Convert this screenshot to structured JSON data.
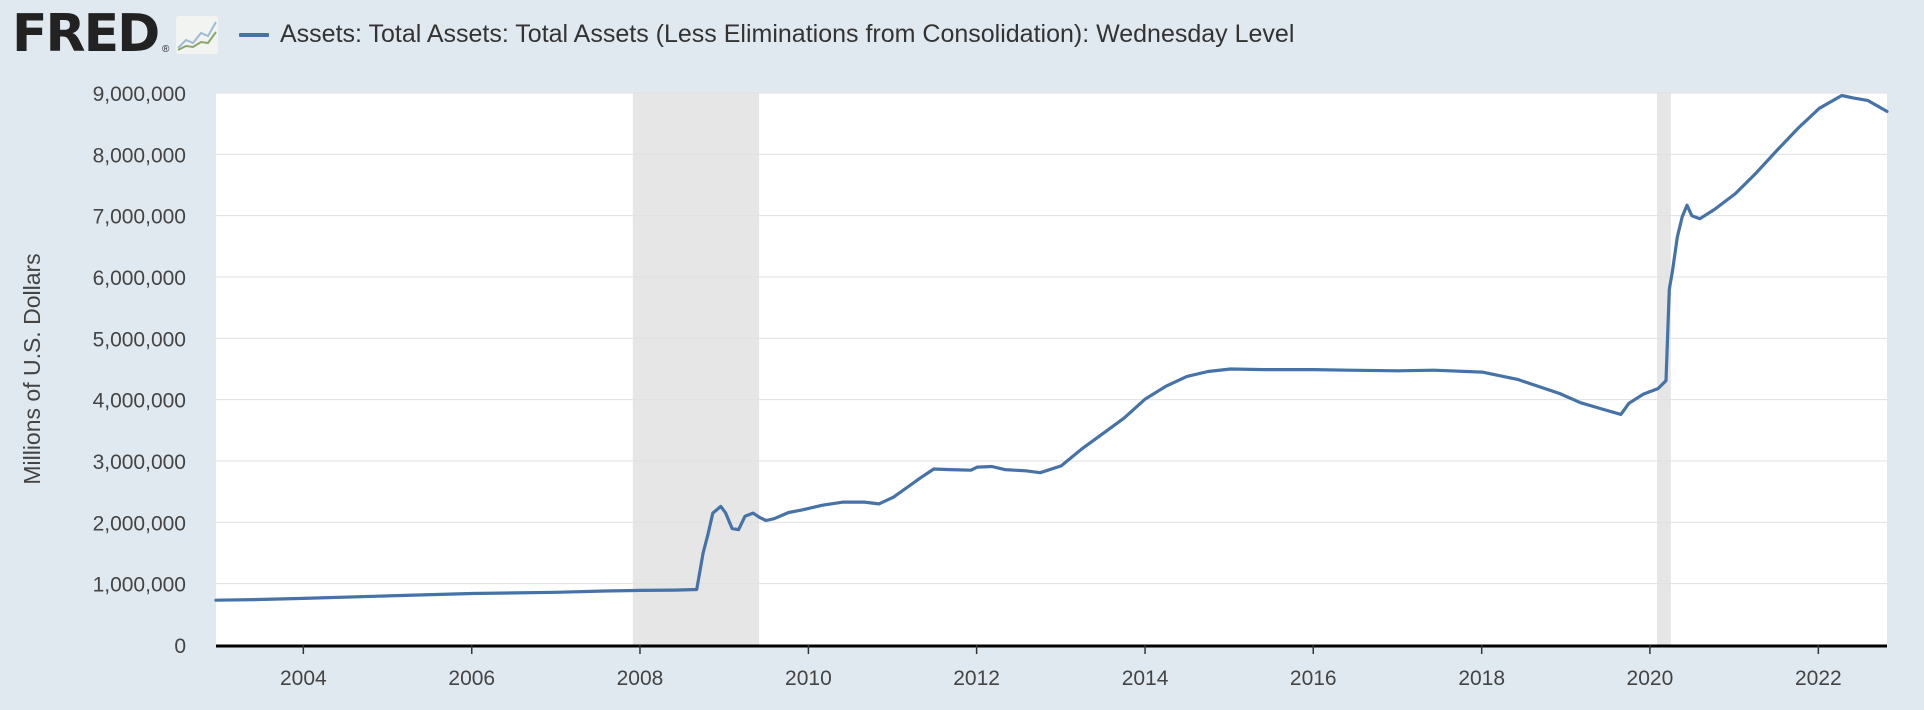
{
  "header": {
    "logo_text": "FRED",
    "logo_mark": "®",
    "graph_icon": "line-graph-icon"
  },
  "colors": {
    "background": "#e1e9f0",
    "plot_background": "#ffffff",
    "series": "#4572a7",
    "recession": "#e6e6e6",
    "grid": "#e0e0e0",
    "axis": "#000000"
  },
  "chart_data": {
    "type": "line",
    "ylabel": "Millions of U.S. Dollars",
    "xlim": [
      "2002-12-18",
      "2022-10-26"
    ],
    "ylim": [
      0,
      9000000
    ],
    "yticks": [
      0,
      1000000,
      2000000,
      3000000,
      4000000,
      5000000,
      6000000,
      7000000,
      8000000,
      9000000
    ],
    "ytick_labels": [
      "0",
      "1,000,000",
      "2,000,000",
      "3,000,000",
      "4,000,000",
      "5,000,000",
      "6,000,000",
      "7,000,000",
      "8,000,000",
      "9,000,000"
    ],
    "xticks": [
      "2004-01-01",
      "2006-01-01",
      "2008-01-01",
      "2010-01-01",
      "2012-01-01",
      "2014-01-01",
      "2016-01-01",
      "2018-01-01",
      "2020-01-01",
      "2022-01-01"
    ],
    "xtick_labels": [
      "2004",
      "2006",
      "2008",
      "2010",
      "2012",
      "2014",
      "2016",
      "2018",
      "2020",
      "2022"
    ],
    "grid": true,
    "recessions": [
      {
        "start": "2007-12-01",
        "end": "2009-06-01"
      },
      {
        "start": "2020-02-01",
        "end": "2020-04-01"
      }
    ],
    "series": [
      {
        "name": "Assets: Total Assets: Total Assets (Less Eliminations from Consolidation): Wednesday Level",
        "points": [
          [
            "2002-12-18",
            730000
          ],
          [
            "2003-06-01",
            740000
          ],
          [
            "2004-01-01",
            760000
          ],
          [
            "2005-01-01",
            800000
          ],
          [
            "2006-01-01",
            840000
          ],
          [
            "2007-01-01",
            860000
          ],
          [
            "2007-08-01",
            880000
          ],
          [
            "2008-01-01",
            890000
          ],
          [
            "2008-06-01",
            895000
          ],
          [
            "2008-09-03",
            905000
          ],
          [
            "2008-09-17",
            1200000
          ],
          [
            "2008-10-01",
            1500000
          ],
          [
            "2008-10-22",
            1800000
          ],
          [
            "2008-11-12",
            2150000
          ],
          [
            "2008-12-17",
            2260000
          ],
          [
            "2009-01-07",
            2150000
          ],
          [
            "2009-02-04",
            1900000
          ],
          [
            "2009-03-04",
            1880000
          ],
          [
            "2009-04-01",
            2100000
          ],
          [
            "2009-05-06",
            2150000
          ],
          [
            "2009-06-03",
            2080000
          ],
          [
            "2009-07-01",
            2030000
          ],
          [
            "2009-08-05",
            2060000
          ],
          [
            "2009-10-07",
            2160000
          ],
          [
            "2009-12-02",
            2200000
          ],
          [
            "2010-03-03",
            2280000
          ],
          [
            "2010-06-02",
            2330000
          ],
          [
            "2010-09-01",
            2330000
          ],
          [
            "2010-11-03",
            2300000
          ],
          [
            "2011-01-05",
            2410000
          ],
          [
            "2011-03-02",
            2560000
          ],
          [
            "2011-05-04",
            2730000
          ],
          [
            "2011-06-29",
            2870000
          ],
          [
            "2011-09-07",
            2860000
          ],
          [
            "2011-12-07",
            2850000
          ],
          [
            "2012-01-04",
            2900000
          ],
          [
            "2012-03-07",
            2910000
          ],
          [
            "2012-05-02",
            2860000
          ],
          [
            "2012-08-01",
            2840000
          ],
          [
            "2012-10-03",
            2810000
          ],
          [
            "2013-01-02",
            2920000
          ],
          [
            "2013-04-03",
            3200000
          ],
          [
            "2013-07-03",
            3450000
          ],
          [
            "2013-10-02",
            3700000
          ],
          [
            "2014-01-01",
            4010000
          ],
          [
            "2014-04-02",
            4220000
          ],
          [
            "2014-07-02",
            4380000
          ],
          [
            "2014-10-01",
            4460000
          ],
          [
            "2015-01-07",
            4500000
          ],
          [
            "2015-06-03",
            4490000
          ],
          [
            "2016-01-06",
            4490000
          ],
          [
            "2016-06-01",
            4480000
          ],
          [
            "2017-01-04",
            4470000
          ],
          [
            "2017-06-07",
            4480000
          ],
          [
            "2018-01-03",
            4450000
          ],
          [
            "2018-06-06",
            4330000
          ],
          [
            "2018-12-05",
            4100000
          ],
          [
            "2019-03-06",
            3950000
          ],
          [
            "2019-06-05",
            3850000
          ],
          [
            "2019-08-28",
            3760000
          ],
          [
            "2019-10-02",
            3940000
          ],
          [
            "2019-12-04",
            4090000
          ],
          [
            "2020-02-05",
            4180000
          ],
          [
            "2020-03-11",
            4310000
          ],
          [
            "2020-03-25",
            5800000
          ],
          [
            "2020-04-08",
            6100000
          ],
          [
            "2020-04-29",
            6650000
          ],
          [
            "2020-05-20",
            6980000
          ],
          [
            "2020-06-10",
            7170000
          ],
          [
            "2020-07-01",
            7000000
          ],
          [
            "2020-08-05",
            6950000
          ],
          [
            "2020-10-07",
            7100000
          ],
          [
            "2021-01-06",
            7360000
          ],
          [
            "2021-04-07",
            7700000
          ],
          [
            "2021-07-07",
            8070000
          ],
          [
            "2021-10-06",
            8430000
          ],
          [
            "2022-01-05",
            8750000
          ],
          [
            "2022-04-13",
            8960000
          ],
          [
            "2022-06-01",
            8920000
          ],
          [
            "2022-08-03",
            8880000
          ],
          [
            "2022-10-26",
            8700000
          ]
        ]
      }
    ]
  }
}
